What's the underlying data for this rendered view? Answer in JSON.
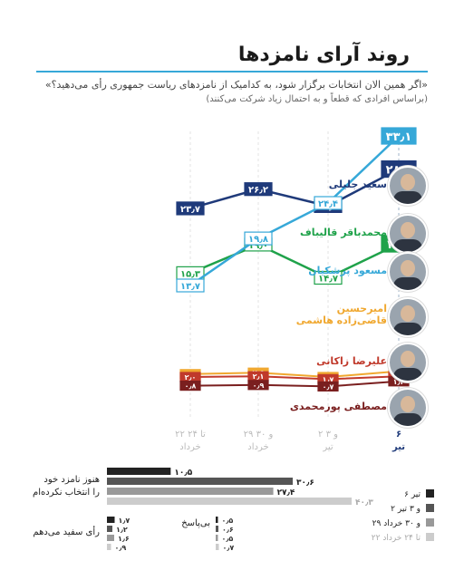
{
  "title": "روند آرای نامزدها",
  "question": "«اگر همین الان انتخابات برگزار شود، به کدامیک از نامزدهای ریاست جمهوری رأی می‌دهید؟»",
  "note": "(براساس افرادی که قطعاً و به احتمال زیاد شرکت می‌کنند)",
  "candidates": [
    {
      "name": "سعید جلیلی",
      "color": "#1f3a7a"
    },
    {
      "name": "محمدباقر قالیباف",
      "color": "#1fa24a"
    },
    {
      "name": "مسعود پزشکیان",
      "color": "#36a8d8"
    },
    {
      "name": "امیرحسین قاضی‌زاده هاشمی",
      "color": "#f0a830"
    },
    {
      "name": "علیرضا زاکانی",
      "color": "#c0392b"
    },
    {
      "name": "مصطفی پورمحمدی",
      "color": "#7a1f1f"
    }
  ],
  "chart_data": {
    "type": "line",
    "categories": [
      "۲۲ تا ۲۴ خرداد",
      "۲۹ و ۳۰ خرداد",
      "۲ و ۳ تیر",
      "۶ تیر"
    ],
    "series": [
      {
        "name": "سعید جلیلی",
        "values": [
          23.7,
          26.2,
          24.0,
          28.8
        ],
        "labels": [
          "۲۳٫۷",
          "۲۶٫۲",
          "۲۴٫۰",
          "۲۸٫۸"
        ],
        "color": "#1f3a7a"
      },
      {
        "name": "محمدباقر قالیباف",
        "values": [
          15.3,
          19.0,
          14.7,
          19.1
        ],
        "labels": [
          "۱۵٫۳",
          "۱۹٫۰",
          "۱۴٫۷",
          "۱۹٫۱"
        ],
        "color": "#1fa24a"
      },
      {
        "name": "مسعود پزشکیان",
        "values": [
          13.7,
          19.8,
          24.4,
          33.1
        ],
        "labels": [
          "۱۳٫۷",
          "۱۹٫۸",
          "۲۴٫۴",
          "۳۳٫۱"
        ],
        "color": "#36a8d8"
      },
      {
        "name": "امیرحسین قاضی‌زاده هاشمی",
        "values": [
          2.4,
          2.6,
          2.0,
          2.8
        ],
        "labels": [
          "۲٫۴",
          "۲٫۶",
          "۲٫۰",
          "۲٫۸"
        ],
        "color": "#f0a830"
      },
      {
        "name": "علیرضا زاکانی",
        "values": [
          2.0,
          2.1,
          1.7,
          2.1
        ],
        "labels": [
          "۲٫۰",
          "۲٫۱",
          "۱٫۷",
          "۲٫۱"
        ],
        "color": "#c0392b"
      },
      {
        "name": "مصطفی پورمحمدی",
        "values": [
          0.8,
          0.9,
          0.7,
          1.4
        ],
        "labels": [
          "۰٫۸",
          "۰٫۹",
          "۰٫۷",
          "۱٫۴"
        ],
        "color": "#7a1f1f"
      }
    ],
    "bars": {
      "undecided": {
        "title": "هنوز نامزد خود را انتخاب نکرده‌ام",
        "values": [
          10.5,
          30.6,
          27.4,
          40.3
        ],
        "labels": [
          "۱۰٫۵",
          "۳۰٫۶",
          "۲۷٫۴",
          "۴۰٫۳"
        ]
      },
      "blank": {
        "title": "رأی سفید می‌دهم",
        "values": [
          1.7,
          1.2,
          1.6,
          0.9
        ],
        "labels": [
          "۱٫۷",
          "۱٫۲",
          "۱٫۶",
          "۰٫۹"
        ]
      },
      "no_answer": {
        "title": "بی‌پاسخ",
        "values": [
          0.5,
          0.6,
          0.5,
          0.7
        ],
        "labels": [
          "۰٫۵",
          "۰٫۶",
          "۰٫۵",
          "۰٫۷"
        ]
      }
    },
    "legend": [
      {
        "label": "۶ تیر",
        "color": "#222222"
      },
      {
        "label": "۲ و ۳ تیر",
        "color": "#555555"
      },
      {
        "label": "۲۹ و ۳۰ خرداد",
        "color": "#999999"
      },
      {
        "label": "۲۲ تا ۲۴ خرداد",
        "color": "#cccccc"
      }
    ]
  }
}
